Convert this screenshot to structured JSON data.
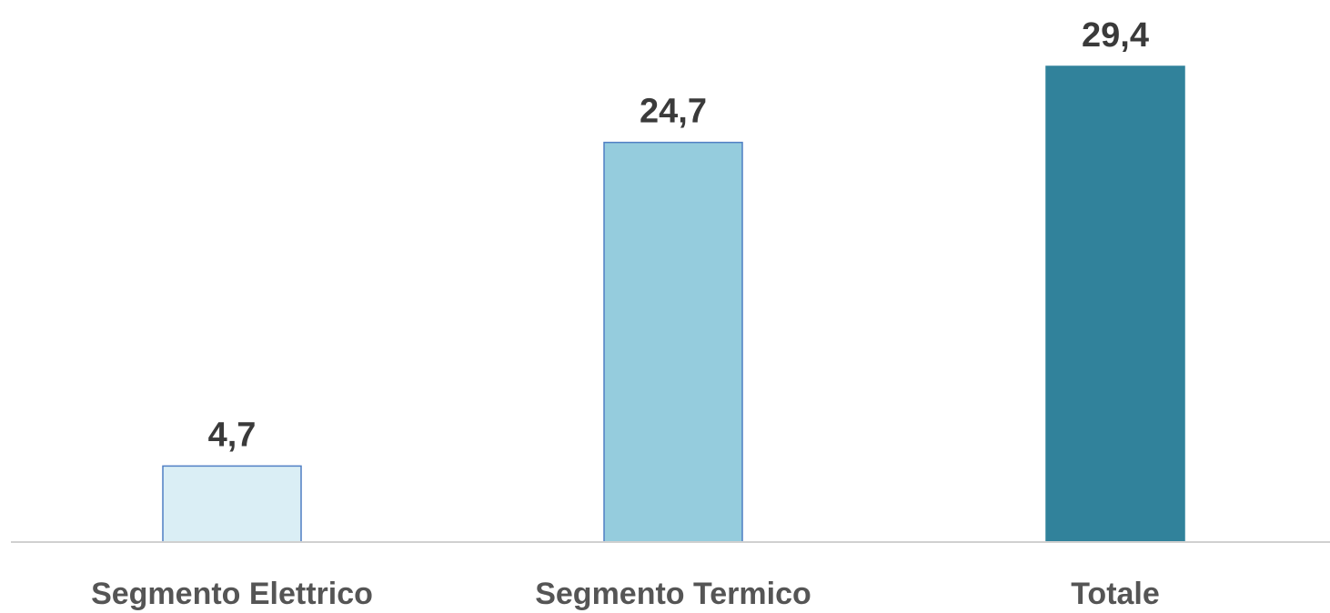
{
  "chart_data": {
    "type": "bar",
    "categories": [
      "Segmento Elettrico",
      "Segmento Termico",
      "Totale"
    ],
    "values": [
      4.7,
      24.7,
      29.4
    ],
    "data_labels": [
      "4,7",
      "24,7",
      "29,4"
    ],
    "title": "",
    "xlabel": "",
    "ylabel": "",
    "ylim": [
      0,
      29.4
    ],
    "grid": false,
    "legend": "none",
    "colors": {
      "bar_fills": [
        "#DAEEF5",
        "#95CCDD",
        "#31829B"
      ],
      "bar_strokes": [
        "#4F7FC4",
        "#4F7FC4",
        "#31829B"
      ],
      "axis_line": "#D0D0D0",
      "data_label": "#3A3A3A",
      "category_label": "#555555"
    }
  }
}
